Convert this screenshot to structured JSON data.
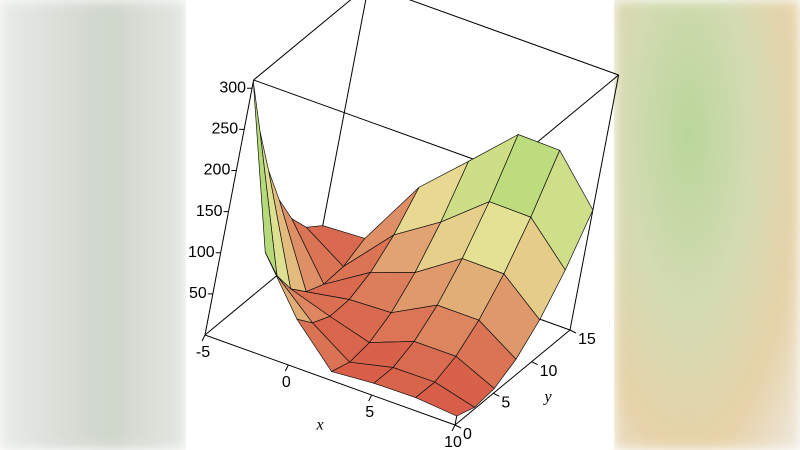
{
  "chart_data": {
    "type": "surface",
    "xlabel": "x",
    "ylabel": "y",
    "x": [
      -5,
      -2.5,
      0,
      2.5,
      5,
      7.5,
      10
    ],
    "y": [
      0,
      2.5,
      5,
      7.5,
      10,
      12.5,
      15
    ],
    "z": [
      [
        308.1,
        228.5,
        161.3,
        106.6,
        64.4,
        34.7,
        17.5
      ],
      [
        118.6,
        71.0,
        35.8,
        13.1,
        2.9,
        5.2,
        20.1
      ],
      [
        55.6,
        31.9,
        20.6,
        21.9,
        35.6,
        61.9,
        100.6
      ],
      [
        10.3,
        2.4,
        7.0,
        24.1,
        53.7,
        95.8,
        150.4
      ],
      [
        14.3,
        14.2,
        26.6,
        51.5,
        88.9,
        138.8,
        201.2
      ],
      [
        15.1,
        14.7,
        26.8,
        51.4,
        88.5,
        138.1,
        200.2
      ],
      [
        10.9,
        2.2,
        5.9,
        22.2,
        50.9,
        92.2,
        145.9
      ]
    ],
    "xlim": [
      -5,
      10
    ],
    "ylim": [
      0,
      15
    ],
    "zlim": [
      0,
      310
    ],
    "xticks": [
      -5,
      0,
      5,
      10
    ],
    "yticks": [
      0,
      5,
      10,
      15
    ],
    "zticks": [
      50,
      100,
      150,
      200,
      250,
      300
    ]
  }
}
